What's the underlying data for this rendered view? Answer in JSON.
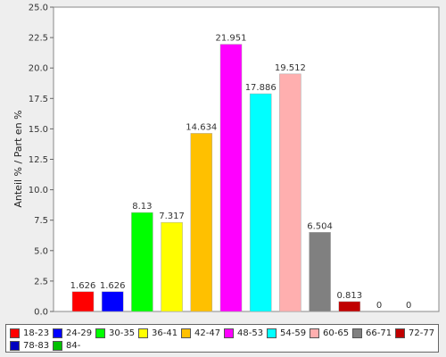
{
  "chart_data": {
    "type": "bar",
    "title": "",
    "xlabel": "",
    "ylabel": "Anteil % / Part en %",
    "ylim": [
      0,
      25
    ],
    "yticks": [
      "0.0",
      "2.5",
      "5.0",
      "7.5",
      "10.0",
      "12.5",
      "15.0",
      "17.5",
      "20.0",
      "22.5",
      "25.0"
    ],
    "ytick_values": [
      0,
      2.5,
      5,
      7.5,
      10,
      12.5,
      15,
      17.5,
      20,
      22.5,
      25
    ],
    "grid": false,
    "legend_position": "bottom",
    "categories": [
      "18-23",
      "24-29",
      "30-35",
      "36-41",
      "42-47",
      "48-53",
      "54-59",
      "60-65",
      "66-71",
      "72-77",
      "78-83",
      "84-"
    ],
    "values": [
      1.626,
      1.626,
      8.13,
      7.317,
      14.634,
      21.951,
      17.886,
      19.512,
      6.504,
      0.813,
      0,
      0
    ],
    "data_labels": [
      "1.626",
      "1.626",
      "8.13",
      "7.317",
      "14.634",
      "21.951",
      "17.886",
      "19.512",
      "6.504",
      "0.813",
      "0",
      "0"
    ],
    "colors": [
      "#ff0000",
      "#0000ff",
      "#00ff00",
      "#ffff00",
      "#ffc000",
      "#ff00ff",
      "#00ffff",
      "#ffafaf",
      "#808080",
      "#c00000",
      "#0000c0",
      "#00c000"
    ]
  }
}
